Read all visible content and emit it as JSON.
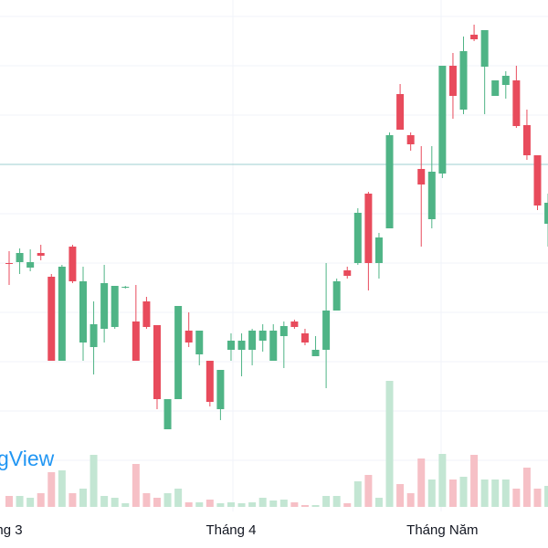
{
  "chart_data": {
    "type": "candlestick",
    "watermark": "gView",
    "categories": [
      "ng 3",
      null,
      null,
      null,
      null,
      null,
      null,
      null,
      null,
      null,
      null,
      null,
      null,
      null,
      null,
      null,
      null,
      null,
      null,
      null,
      null,
      "Tháng 4",
      null,
      null,
      null,
      null,
      null,
      null,
      null,
      null,
      null,
      null,
      null,
      null,
      null,
      null,
      null,
      null,
      null,
      null,
      null,
      "Tháng Năm",
      null,
      null,
      null,
      null,
      null,
      null,
      null,
      null,
      null,
      null
    ],
    "open": [
      312,
      313,
      307,
      323,
      297,
      205,
      330,
      225,
      220,
      240,
      242,
      285,
      248,
      270,
      244,
      130,
      163,
      238,
      212,
      205,
      152,
      217,
      217,
      217,
      227,
      205,
      232,
      248,
      235,
      210,
      217,
      260,
      304,
      312,
      388,
      312,
      350,
      497,
      452,
      415,
      360,
      410,
      528,
      480,
      562,
      527,
      495,
      507,
      512,
      463,
      430,
      355
    ],
    "close": [
      311,
      323,
      313,
      320,
      205,
      308,
      292,
      292,
      245,
      290,
      287,
      286,
      205,
      242,
      163,
      163,
      265,
      225,
      238,
      160,
      195,
      227,
      227,
      238,
      238,
      238,
      243,
      242,
      225,
      217,
      260,
      292,
      298,
      367,
      312,
      340,
      452,
      458,
      442,
      398,
      412,
      528,
      495,
      544,
      557,
      567,
      512,
      517,
      462,
      430,
      375,
      378
    ],
    "high": [
      325,
      328,
      327,
      332,
      300,
      310,
      332,
      308,
      270,
      310,
      287,
      287,
      288,
      275,
      244,
      163,
      265,
      258,
      238,
      205,
      195,
      235,
      235,
      240,
      245,
      245,
      248,
      250,
      240,
      232,
      312,
      295,
      308,
      372,
      390,
      345,
      455,
      508,
      455,
      440,
      440,
      528,
      542,
      560,
      573,
      567,
      512,
      522,
      528,
      480,
      430,
      388
    ],
    "low": [
      288,
      300,
      303,
      315,
      205,
      205,
      290,
      205,
      190,
      225,
      240,
      284,
      205,
      240,
      152,
      130,
      163,
      220,
      200,
      155,
      140,
      205,
      188,
      200,
      215,
      205,
      197,
      240,
      222,
      210,
      175,
      260,
      295,
      310,
      282,
      295,
      350,
      458,
      435,
      330,
      350,
      405,
      470,
      475,
      555,
      475,
      495,
      492,
      460,
      425,
      370,
      330
    ],
    "volume": [
      12,
      12,
      10,
      15,
      38,
      40,
      15,
      20,
      57,
      12,
      10,
      4,
      47,
      15,
      10,
      15,
      20,
      5,
      5,
      8,
      4,
      5,
      4,
      5,
      10,
      7,
      8,
      5,
      2,
      2,
      12,
      12,
      4,
      28,
      35,
      10,
      138,
      25,
      15,
      53,
      30,
      58,
      30,
      33,
      57,
      30,
      30,
      30,
      20,
      43,
      20,
      23
    ],
    "ylim": [
      0,
      600
    ],
    "volume_ylim": [
      0,
      555
    ],
    "up_color": "#4fb486",
    "down_color": "#e84b5c",
    "volume_up_color": "#c3e6d3",
    "volume_down_color": "#f6c0c6"
  }
}
